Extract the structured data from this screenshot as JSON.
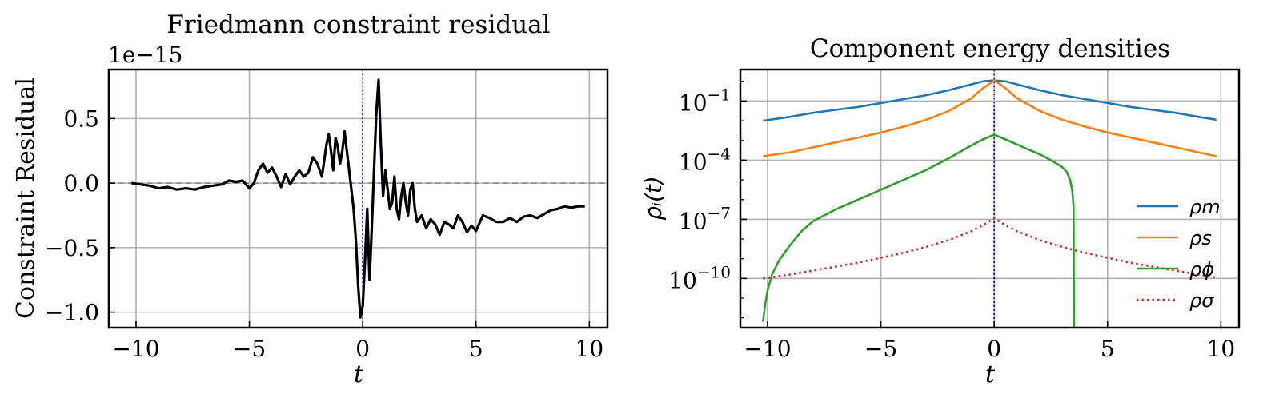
{
  "chart_data": [
    {
      "type": "line",
      "title": "Friedmann constraint residual",
      "xlabel": "t",
      "ylabel": "Constraint Residual",
      "offset_text": "1e−15",
      "xlim": [
        -11.2,
        10.8
      ],
      "ylim": [
        -1.12,
        0.88
      ],
      "xticks": [
        -10,
        -5,
        0,
        5,
        10
      ],
      "xtick_labels": [
        "−10",
        "−5",
        "0",
        "5",
        "10"
      ],
      "yticks": [
        -1.0,
        -0.5,
        0.0,
        0.5
      ],
      "ytick_labels": [
        "−1.0",
        "−0.5",
        "0.0",
        "0.5"
      ],
      "grid": true,
      "reference_lines": [
        {
          "orientation": "horizontal",
          "value": 0.0,
          "style": "dashed",
          "color": "#808080"
        },
        {
          "orientation": "vertical",
          "value": 0.0,
          "style": "dotted",
          "color": "#0000cc"
        }
      ],
      "series": [
        {
          "color": "#000000",
          "x": [
            -10.2,
            -9.8,
            -9.4,
            -9.0,
            -8.6,
            -8.2,
            -7.8,
            -7.4,
            -7.0,
            -6.6,
            -6.2,
            -5.9,
            -5.6,
            -5.3,
            -5.0,
            -4.8,
            -4.6,
            -4.4,
            -4.2,
            -4.0,
            -3.8,
            -3.6,
            -3.4,
            -3.2,
            -3.0,
            -2.8,
            -2.6,
            -2.4,
            -2.2,
            -2.0,
            -1.8,
            -1.6,
            -1.5,
            -1.4,
            -1.3,
            -1.2,
            -1.1,
            -1.0,
            -0.9,
            -0.8,
            -0.7,
            -0.6,
            -0.5,
            -0.4,
            -0.3,
            -0.2,
            -0.1,
            0.0,
            0.1,
            0.2,
            0.3,
            0.4,
            0.5,
            0.6,
            0.7,
            0.8,
            0.9,
            1.0,
            1.1,
            1.2,
            1.3,
            1.4,
            1.5,
            1.6,
            1.7,
            1.8,
            1.9,
            2.0,
            2.1,
            2.2,
            2.3,
            2.4,
            2.6,
            2.8,
            3.0,
            3.2,
            3.4,
            3.6,
            3.8,
            4.0,
            4.2,
            4.4,
            4.6,
            4.8,
            5.0,
            5.3,
            5.6,
            5.9,
            6.2,
            6.5,
            6.8,
            7.1,
            7.4,
            7.7,
            8.0,
            8.3,
            8.6,
            8.9,
            9.2,
            9.5,
            9.8
          ],
          "y": [
            0.0,
            -0.01,
            -0.02,
            -0.04,
            -0.03,
            -0.05,
            -0.04,
            -0.05,
            -0.03,
            -0.02,
            -0.01,
            0.02,
            0.01,
            0.02,
            -0.04,
            0.0,
            0.1,
            0.15,
            0.08,
            0.12,
            0.05,
            -0.03,
            0.07,
            -0.01,
            0.05,
            0.1,
            0.05,
            0.08,
            0.2,
            0.15,
            0.05,
            0.3,
            0.38,
            0.25,
            0.1,
            0.35,
            0.28,
            0.15,
            0.25,
            0.4,
            0.25,
            0.1,
            -0.05,
            -0.2,
            -0.45,
            -0.8,
            -1.04,
            -0.95,
            -0.6,
            -0.2,
            -0.75,
            -0.35,
            0.1,
            0.55,
            0.8,
            0.3,
            -0.1,
            0.1,
            -0.05,
            -0.2,
            -0.15,
            0.05,
            -0.2,
            -0.28,
            -0.1,
            0.0,
            -0.15,
            -0.25,
            -0.05,
            0.0,
            -0.2,
            -0.3,
            -0.25,
            -0.35,
            -0.28,
            -0.32,
            -0.4,
            -0.3,
            -0.32,
            -0.35,
            -0.25,
            -0.3,
            -0.38,
            -0.33,
            -0.37,
            -0.25,
            -0.27,
            -0.3,
            -0.3,
            -0.27,
            -0.3,
            -0.26,
            -0.25,
            -0.27,
            -0.24,
            -0.21,
            -0.2,
            -0.18,
            -0.19,
            -0.18,
            -0.18
          ]
        }
      ]
    },
    {
      "type": "line",
      "title": "Component energy densities",
      "xlabel": "t",
      "ylabel": "ρᵢ(t)",
      "xlim": [
        -11.2,
        10.8
      ],
      "ylim": [
        -12.5,
        0.6
      ],
      "yscale": "log",
      "xticks": [
        -10,
        -5,
        0,
        5,
        10
      ],
      "xtick_labels": [
        "−10",
        "−5",
        "0",
        "5",
        "10"
      ],
      "yticks": [
        -1,
        -4,
        -7,
        -10
      ],
      "ytick_labels": [
        "10",
        "10",
        "10",
        "10"
      ],
      "ytick_exponents": [
        "−1",
        "−4",
        "−7",
        "−10"
      ],
      "grid": true,
      "legend": "center-right",
      "reference_lines": [
        {
          "orientation": "vertical",
          "value": 0.0,
          "style": "dotted",
          "color": "#0000cc"
        }
      ],
      "series": [
        {
          "name": "ρm",
          "color": "#1f77b4",
          "style": "solid",
          "x": [
            -10.2,
            -9,
            -8,
            -7,
            -6,
            -5,
            -4,
            -3,
            -2,
            -1,
            -0.5,
            0,
            0.5,
            1,
            2,
            3,
            4,
            5,
            6,
            7,
            8,
            9,
            9.8
          ],
          "log10_y": [
            -2.0,
            -1.8,
            -1.6,
            -1.45,
            -1.3,
            -1.1,
            -0.9,
            -0.7,
            -0.45,
            -0.15,
            0.0,
            0.05,
            0.0,
            -0.15,
            -0.45,
            -0.7,
            -0.9,
            -1.1,
            -1.3,
            -1.45,
            -1.6,
            -1.8,
            -1.95
          ]
        },
        {
          "name": "ρs",
          "color": "#ff7f0e",
          "style": "solid",
          "x": [
            -10.2,
            -9,
            -8,
            -7,
            -6,
            -5,
            -4,
            -3,
            -2,
            -1,
            -0.5,
            0,
            0.5,
            1,
            2,
            3,
            4,
            5,
            6,
            7,
            8,
            9,
            9.8
          ],
          "log10_y": [
            -3.8,
            -3.6,
            -3.35,
            -3.1,
            -2.85,
            -2.6,
            -2.3,
            -1.95,
            -1.5,
            -0.85,
            -0.35,
            0.05,
            -0.35,
            -0.85,
            -1.5,
            -1.95,
            -2.3,
            -2.6,
            -2.85,
            -3.1,
            -3.35,
            -3.6,
            -3.8
          ]
        },
        {
          "name": "ρϕ",
          "color": "#2ca02c",
          "style": "solid",
          "x": [
            -10.2,
            -10.1,
            -10.0,
            -9.8,
            -9.5,
            -9.0,
            -8.5,
            -8.0,
            -7.0,
            -6.0,
            -5.0,
            -4.0,
            -3.0,
            -2.0,
            -1.0,
            -0.5,
            0,
            0.5,
            1,
            1.5,
            2,
            2.5,
            3,
            3.2,
            3.35,
            3.45,
            3.5,
            3.52
          ],
          "log10_y": [
            -12.2,
            -11.3,
            -10.6,
            -9.8,
            -9.1,
            -8.3,
            -7.6,
            -7.1,
            -6.5,
            -6.0,
            -5.5,
            -5.0,
            -4.5,
            -3.9,
            -3.25,
            -2.95,
            -2.7,
            -2.95,
            -3.2,
            -3.45,
            -3.7,
            -4.0,
            -4.35,
            -4.6,
            -5.0,
            -5.6,
            -6.4,
            -12.5
          ]
        },
        {
          "name": "ρσ",
          "color": "#d62728",
          "style": "dotted",
          "x": [
            -10.2,
            -9,
            -8,
            -7,
            -6,
            -5,
            -4,
            -3,
            -2,
            -1,
            -0.5,
            0,
            0.5,
            1,
            2,
            3,
            4,
            5,
            6,
            7,
            8,
            9,
            9.8
          ],
          "log10_y": [
            -10.0,
            -9.8,
            -9.6,
            -9.4,
            -9.2,
            -8.95,
            -8.7,
            -8.4,
            -8.05,
            -7.6,
            -7.3,
            -6.95,
            -7.3,
            -7.6,
            -8.05,
            -8.4,
            -8.7,
            -8.95,
            -9.2,
            -9.4,
            -9.6,
            -9.8,
            -9.95
          ]
        }
      ]
    }
  ]
}
